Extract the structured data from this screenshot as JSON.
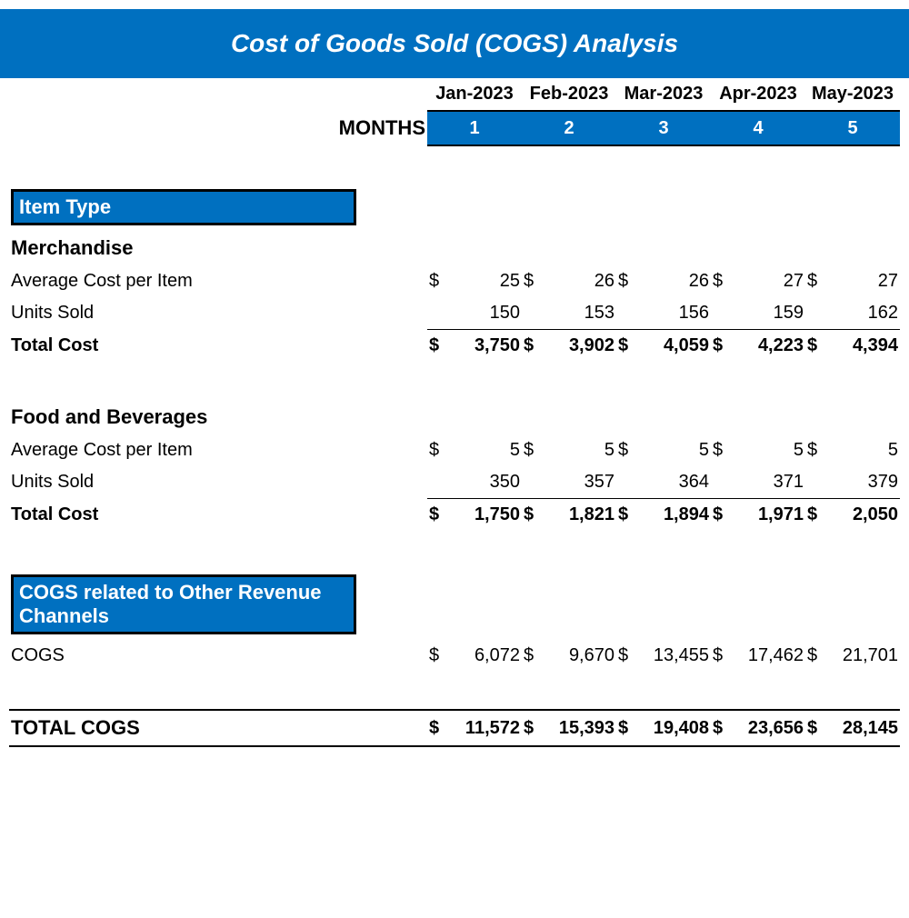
{
  "title": "Cost of Goods Sold (COGS) Analysis",
  "colors": {
    "primary": "#0070c0",
    "text": "#000000",
    "bg": "#ffffff"
  },
  "months_label": "MONTHS",
  "month_headers": [
    "Jan-2023",
    "Feb-2023",
    "Mar-2023",
    "Apr-2023",
    "May-2023"
  ],
  "month_numbers": [
    "1",
    "2",
    "3",
    "4",
    "5"
  ],
  "section_item_type": "Item Type",
  "merch": {
    "title": "Merchandise",
    "avg_label": "Average Cost per Item",
    "avg": [
      "25",
      "26",
      "26",
      "27",
      "27"
    ],
    "units_label": "Units Sold",
    "units": [
      "150",
      "153",
      "156",
      "159",
      "162"
    ],
    "total_label": "Total Cost",
    "total": [
      "3,750",
      "3,902",
      "4,059",
      "4,223",
      "4,394"
    ]
  },
  "food": {
    "title": "Food and Beverages",
    "avg_label": "Average Cost per Item",
    "avg": [
      "5",
      "5",
      "5",
      "5",
      "5"
    ],
    "units_label": "Units Sold",
    "units": [
      "350",
      "357",
      "364",
      "371",
      "379"
    ],
    "total_label": "Total Cost",
    "total": [
      "1,750",
      "1,821",
      "1,894",
      "1,971",
      "2,050"
    ]
  },
  "other": {
    "section": "COGS related to Other Revenue Channels",
    "label": "COGS",
    "values": [
      "6,072",
      "9,670",
      "13,455",
      "17,462",
      "21,701"
    ]
  },
  "total": {
    "label": "TOTAL COGS",
    "values": [
      "11,572",
      "15,393",
      "19,408",
      "23,656",
      "28,145"
    ]
  },
  "currency": "$"
}
